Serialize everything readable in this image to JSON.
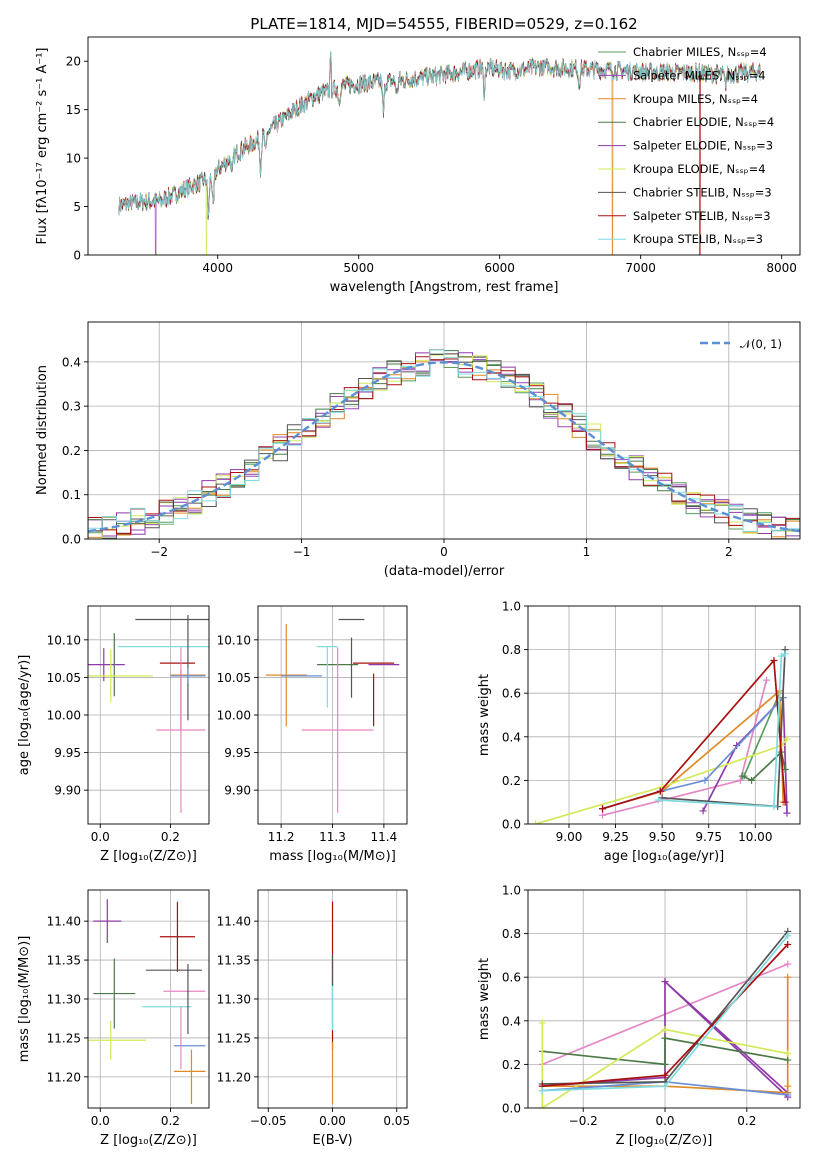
{
  "colors": {
    "cm": "#5c9e5c",
    "sm": "#9b46b8",
    "km": "#e08a25",
    "ce": "#4b7a49",
    "se": "#8e3aa8",
    "ke": "#d4ea5a",
    "cs": "#555555",
    "ss": "#a81010",
    "ks": "#7fdbe0",
    "pink": "#e587c4",
    "blue": "#6a8fd8",
    "dashed": "#5b8fd6"
  },
  "chart_data": [
    {
      "id": "spectrum",
      "type": "line",
      "title": "PLATE=1814, MJD=54555, FIBERID=0529, z=0.162",
      "xlabel": "wavelength [Angstrom, rest frame]",
      "ylabel": "Flux [fλ10⁻¹⁷ erg cm⁻² s⁻¹ A⁻¹]",
      "xlim": [
        3080,
        8130
      ],
      "ylim": [
        0,
        22.5
      ],
      "xticks": [
        4000,
        5000,
        6000,
        7000,
        8000
      ],
      "yticks": [
        0,
        5,
        10,
        15,
        20
      ],
      "legend_position": "top-right",
      "continuum": [
        [
          3300,
          5.1
        ],
        [
          3400,
          5.4
        ],
        [
          3600,
          5.6
        ],
        [
          3800,
          7.0
        ],
        [
          3950,
          8.0
        ],
        [
          4100,
          10.2
        ],
        [
          4300,
          12.0
        ],
        [
          4500,
          14.5
        ],
        [
          4700,
          16.5
        ],
        [
          4900,
          17.5
        ],
        [
          5100,
          17.8
        ],
        [
          5300,
          18.0
        ],
        [
          5600,
          18.6
        ],
        [
          5900,
          19.3
        ],
        [
          6100,
          19.0
        ],
        [
          6300,
          19.4
        ],
        [
          6600,
          19.2
        ],
        [
          6900,
          19.0
        ],
        [
          7100,
          18.9
        ],
        [
          7400,
          18.8
        ],
        [
          7600,
          18.6
        ],
        [
          7850,
          18.9
        ]
      ],
      "series": [
        {
          "name": "Chabrier MILES, N_SSP=4",
          "color_key": "cm"
        },
        {
          "name": "Salpeter MILES, N_SSP=4",
          "color_key": "sm"
        },
        {
          "name": "Kroupa MILES, N_SSP=4",
          "color_key": "km"
        },
        {
          "name": "Chabrier ELODIE, N_SSP=4",
          "color_key": "ce"
        },
        {
          "name": "Salpeter ELODIE, N_SSP=3",
          "color_key": "se"
        },
        {
          "name": "Kroupa ELODIE, N_SSP=4",
          "color_key": "ke"
        },
        {
          "name": "Chabrier STELIB, N_SSP=3",
          "color_key": "cs"
        },
        {
          "name": "Salpeter STELIB, N_SSP=3",
          "color_key": "ss"
        },
        {
          "name": "Kroupa STELIB, N_SSP=3",
          "color_key": "ks"
        }
      ]
    },
    {
      "id": "residuals",
      "type": "area",
      "xlabel": "(data-model)/error",
      "ylabel": "Normed distribution",
      "xlim": [
        -2.5,
        2.5
      ],
      "ylim": [
        0,
        0.49
      ],
      "xticks": [
        -2,
        -1,
        0,
        1,
        2
      ],
      "yticks": [
        0.0,
        0.1,
        0.2,
        0.3,
        0.4
      ],
      "grid": true,
      "legend_position": "top-right",
      "legend": "𝒩(0, 1)",
      "bin_width": 0.1,
      "series_color_keys": [
        "cm",
        "sm",
        "km",
        "ce",
        "se",
        "ke",
        "cs",
        "ss",
        "ks"
      ]
    },
    {
      "id": "age-vs-Z",
      "type": "scatter",
      "xlabel": "Z [log₁₀(Z/Z⊙)]",
      "ylabel": "age  [log₁₀(age/yr)]",
      "xlim": [
        -0.035,
        0.31
      ],
      "ylim": [
        9.855,
        10.145
      ],
      "xticks": [
        0.0,
        0.2
      ],
      "yticks": [
        9.9,
        9.95,
        10.0,
        10.05,
        10.1
      ],
      "grid": true,
      "points": [
        {
          "c": "se",
          "x": 0.01,
          "y": 10.067,
          "ex": 0.06,
          "ey": 0.022
        },
        {
          "c": "ce",
          "x": 0.04,
          "y": 10.067,
          "ex": 0.0,
          "ey": 0.042
        },
        {
          "c": "ke",
          "x": 0.03,
          "y": 10.052,
          "ex": 0.12,
          "ey": 0.035
        },
        {
          "c": "cs",
          "x": 0.21,
          "y": 10.127,
          "ex": 0.11,
          "ey": 0.0
        },
        {
          "c": "ks",
          "x": 0.19,
          "y": 10.091,
          "ex": 0.14,
          "ey": 0.0
        },
        {
          "c": "ss",
          "x": 0.22,
          "y": 10.069,
          "ex": 0.05,
          "ey": 0.0
        },
        {
          "c": "cs",
          "x": 0.25,
          "y": 10.063,
          "ex": 0.0,
          "ey": 0.07
        },
        {
          "c": "km",
          "x": 0.25,
          "y": 10.053,
          "ex": 0.05,
          "ey": 0.0
        },
        {
          "c": "blue",
          "x": 0.25,
          "y": 10.052,
          "ex": 0.05,
          "ey": 0.01
        },
        {
          "c": "ss",
          "x": 0.23,
          "y": 10.02,
          "ex": 0.0,
          "ey": 0.04
        },
        {
          "c": "pink",
          "x": 0.23,
          "y": 9.98,
          "ex": 0.07,
          "ey": 0.11
        }
      ]
    },
    {
      "id": "age-vs-mass",
      "type": "scatter",
      "xlabel": "mass [log₁₀(M/M⊙)]",
      "xlim": [
        11.155,
        11.445
      ],
      "ylim": [
        9.855,
        10.145
      ],
      "xticks": [
        11.2,
        11.3,
        11.4
      ],
      "yticks": [
        9.9,
        9.95,
        10.0,
        10.05,
        10.1
      ],
      "grid": true,
      "points": [
        {
          "c": "cs",
          "x": 11.337,
          "y": 10.127,
          "ex": 0.025,
          "ey": 0.0
        },
        {
          "c": "ks",
          "x": 11.29,
          "y": 10.091,
          "ex": 0.02,
          "ey": 0.0
        },
        {
          "c": "ce",
          "x": 11.31,
          "y": 10.067,
          "ex": 0.04,
          "ey": 0.0
        },
        {
          "c": "cs",
          "x": 11.337,
          "y": 10.063,
          "ex": 0.0,
          "ey": 0.04
        },
        {
          "c": "ss",
          "x": 11.38,
          "y": 10.069,
          "ex": 0.04,
          "ey": 0.0
        },
        {
          "c": "se",
          "x": 11.4,
          "y": 10.067,
          "ex": 0.03,
          "ey": 0.0
        },
        {
          "c": "km",
          "x": 11.21,
          "y": 10.053,
          "ex": 0.04,
          "ey": 0.068
        },
        {
          "c": "blue",
          "x": 11.24,
          "y": 10.052,
          "ex": 0.04,
          "ey": 0.0
        },
        {
          "c": "ke",
          "x": 11.245,
          "y": 10.052,
          "ex": 0.0,
          "ey": 0.0
        },
        {
          "c": "ks",
          "x": 11.29,
          "y": 10.05,
          "ex": 0.0,
          "ey": 0.04
        },
        {
          "c": "ss",
          "x": 11.38,
          "y": 10.02,
          "ex": 0.0,
          "ey": 0.035
        },
        {
          "c": "pink",
          "x": 11.31,
          "y": 9.98,
          "ex": 0.07,
          "ey": 0.11
        }
      ]
    },
    {
      "id": "massweight-vs-age",
      "type": "line",
      "xlabel": "age  [log₁₀(age/yr)]",
      "ylabel": "mass weight",
      "xlim": [
        8.78,
        10.24
      ],
      "ylim": [
        0,
        1.0
      ],
      "xticks": [
        9.0,
        9.25,
        9.5,
        9.75,
        10.0
      ],
      "yticks": [
        0.0,
        0.2,
        0.4,
        0.6,
        0.8,
        1.0
      ],
      "grid": true,
      "series": [
        {
          "c": "pink",
          "x": [
            9.18,
            9.92,
            10.06
          ],
          "y": [
            0.04,
            0.2,
            0.66
          ]
        },
        {
          "c": "cm",
          "x": [
            9.94,
            10.13
          ],
          "y": [
            0.22,
            0.6
          ]
        },
        {
          "c": "se",
          "x": [
            9.72,
            9.9,
            10.15,
            10.17
          ],
          "y": [
            0.06,
            0.36,
            0.58,
            0.05
          ]
        },
        {
          "c": "km",
          "x": [
            9.18,
            9.5,
            10.13,
            10.15
          ],
          "y": [
            0.07,
            0.15,
            0.61,
            0.1
          ]
        },
        {
          "c": "ce",
          "x": [
            9.93,
            9.98,
            10.14,
            10.16
          ],
          "y": [
            0.22,
            0.2,
            0.33,
            0.25
          ]
        },
        {
          "c": "ke",
          "x": [
            8.82,
            9.5,
            10.14,
            10.17
          ],
          "y": [
            0.0,
            0.17,
            0.36,
            0.39
          ]
        },
        {
          "c": "blue",
          "x": [
            9.18,
            9.49,
            9.73,
            10.15
          ],
          "y": [
            0.07,
            0.15,
            0.2,
            0.58
          ]
        },
        {
          "c": "cs",
          "x": [
            9.5,
            10.12,
            10.16
          ],
          "y": [
            0.12,
            0.08,
            0.8
          ]
        },
        {
          "c": "ss",
          "x": [
            9.18,
            9.49,
            10.1,
            10.16
          ],
          "y": [
            0.07,
            0.15,
            0.75,
            0.1
          ]
        },
        {
          "c": "ks",
          "x": [
            9.48,
            10.1,
            10.14,
            10.16
          ],
          "y": [
            0.11,
            0.08,
            0.77,
            0.78
          ]
        }
      ]
    },
    {
      "id": "mass-vs-Z",
      "type": "scatter",
      "xlabel": "Z [log₁₀(Z/Z⊙)]",
      "ylabel": "mass [log₁₀(M/M⊙)]",
      "xlim": [
        -0.035,
        0.31
      ],
      "ylim": [
        11.16,
        11.44
      ],
      "xticks": [
        0.0,
        0.2
      ],
      "yticks": [
        11.2,
        11.25,
        11.3,
        11.35,
        11.4
      ],
      "grid": true,
      "points": [
        {
          "c": "se",
          "x": 0.02,
          "y": 11.4,
          "ex": 0.04,
          "ey": 0.028
        },
        {
          "c": "ce",
          "x": 0.04,
          "y": 11.307,
          "ex": 0.06,
          "ey": 0.045
        },
        {
          "c": "ke",
          "x": 0.03,
          "y": 11.247,
          "ex": 0.1,
          "ey": 0.025
        },
        {
          "c": "ss",
          "x": 0.22,
          "y": 11.38,
          "ex": 0.05,
          "ey": 0.045
        },
        {
          "c": "cs",
          "x": 0.21,
          "y": 11.337,
          "ex": 0.08,
          "ey": 0.0
        },
        {
          "c": "pink",
          "x": 0.24,
          "y": 11.31,
          "ex": 0.06,
          "ey": 0.0
        },
        {
          "c": "ks",
          "x": 0.19,
          "y": 11.29,
          "ex": 0.07,
          "ey": 0.0
        },
        {
          "c": "cs",
          "x": 0.25,
          "y": 11.3,
          "ex": 0.0,
          "ey": 0.045
        },
        {
          "c": "blue",
          "x": 0.255,
          "y": 11.24,
          "ex": 0.045,
          "ey": 0.0
        },
        {
          "c": "km",
          "x": 0.255,
          "y": 11.207,
          "ex": 0.045,
          "ey": 0.0
        },
        {
          "c": "km",
          "x": 0.26,
          "y": 11.2,
          "ex": 0.0,
          "ey": 0.035
        },
        {
          "c": "pink",
          "x": 0.23,
          "y": 11.25,
          "ex": 0.0,
          "ey": 0.04
        }
      ]
    },
    {
      "id": "mass-vs-EBV",
      "type": "scatter",
      "xlabel": "E(B-V)",
      "xlim": [
        -0.058,
        0.058
      ],
      "ylim": [
        11.16,
        11.44
      ],
      "xticks": [
        -0.05,
        0.0,
        0.05
      ],
      "yticks": [
        11.2,
        11.25,
        11.3,
        11.35,
        11.4
      ],
      "grid": true,
      "points": [
        {
          "c": "ss",
          "x": 0.0,
          "y": 11.33,
          "ex": 0.0,
          "ey": 0.095
        },
        {
          "c": "km",
          "x": 0.0,
          "y": 11.205,
          "ex": 0.0,
          "ey": 0.04
        },
        {
          "c": "ks",
          "x": 0.0,
          "y": 11.29,
          "ex": 0.0,
          "ey": 0.03
        },
        {
          "c": "cs",
          "x": 0.0,
          "y": 11.337,
          "ex": 0.0,
          "ey": 0.02
        }
      ]
    },
    {
      "id": "massweight-vs-Z",
      "type": "line",
      "xlabel": "Z [log₁₀(Z/Z⊙)]",
      "ylabel": "mass weight",
      "xlim": [
        -0.335,
        0.33
      ],
      "ylim": [
        0,
        1.0
      ],
      "xticks": [
        -0.2,
        0.0,
        0.2
      ],
      "yticks": [
        0.0,
        0.2,
        0.4,
        0.6,
        0.8,
        1.0
      ],
      "grid": true,
      "series": [
        {
          "c": "pink",
          "x": [
            -0.3,
            0.3
          ],
          "y": [
            0.2,
            0.66
          ]
        },
        {
          "c": "se",
          "x": [
            -0.3,
            0.0,
            0.0,
            0.3,
            0.3,
            0.0
          ],
          "y": [
            0.1,
            0.14,
            0.58,
            0.05,
            0.07,
            0.58
          ]
        },
        {
          "c": "km",
          "x": [
            -0.3,
            0.0,
            0.3,
            0.3,
            0.3
          ],
          "y": [
            0.1,
            0.1,
            0.07,
            0.6,
            0.1
          ]
        },
        {
          "c": "ce",
          "x": [
            -0.3,
            0.0,
            0.0,
            0.3
          ],
          "y": [
            0.26,
            0.2,
            0.32,
            0.22
          ]
        },
        {
          "c": "ke",
          "x": [
            -0.3,
            -0.3,
            0.0,
            0.3
          ],
          "y": [
            0.39,
            0.0,
            0.36,
            0.25
          ]
        },
        {
          "c": "blue",
          "x": [
            -0.3,
            0.0,
            0.3
          ],
          "y": [
            0.08,
            0.12,
            0.06
          ]
        },
        {
          "c": "cs",
          "x": [
            -0.3,
            0.0,
            0.3
          ],
          "y": [
            0.11,
            0.12,
            0.81
          ]
        },
        {
          "c": "ss",
          "x": [
            -0.3,
            0.0,
            0.3
          ],
          "y": [
            0.1,
            0.15,
            0.75
          ]
        },
        {
          "c": "ks",
          "x": [
            -0.3,
            0.0,
            0.3
          ],
          "y": [
            0.08,
            0.1,
            0.79
          ]
        }
      ]
    }
  ]
}
